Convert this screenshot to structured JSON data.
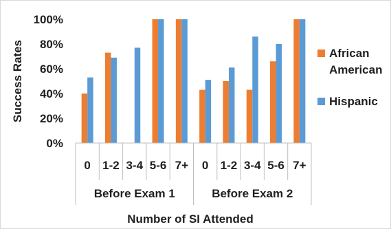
{
  "chart_data": {
    "type": "bar",
    "group_labels": [
      "Before Exam 1",
      "Before Exam 2"
    ],
    "categories": [
      "0",
      "1-2",
      "3-4",
      "5-6",
      "7+",
      "0",
      "1-2",
      "3-4",
      "5-6",
      "7+"
    ],
    "series": [
      {
        "name": "African American",
        "color": "#ed7d31",
        "values": [
          40,
          73,
          0,
          100,
          100,
          43,
          50,
          43,
          66,
          100
        ]
      },
      {
        "name": "Hispanic",
        "color": "#5b9bd5",
        "values": [
          53,
          69,
          77,
          100,
          100,
          51,
          61,
          86,
          80,
          100
        ]
      }
    ],
    "xlabel": "Number of SI Attended",
    "ylabel": "Success Rates",
    "ylim": [
      0,
      100
    ],
    "yticks": [
      "0%",
      "20%",
      "40%",
      "60%",
      "80%",
      "100%"
    ],
    "grid": false,
    "legend_position": "right"
  }
}
